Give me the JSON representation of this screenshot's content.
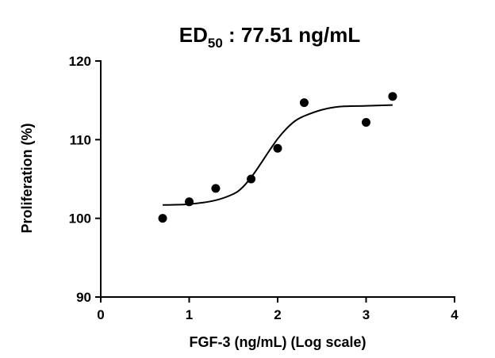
{
  "chart_data": {
    "type": "scatter",
    "title": {
      "main": "ED",
      "subscript": "50",
      "suffix": " : 77.51 ng/mL"
    },
    "xlabel": "FGF-3 (ng/mL) (Log scale)",
    "ylabel": "Proliferation (%)",
    "xlim": [
      0,
      4
    ],
    "ylim": [
      90,
      120
    ],
    "xticks": [
      "0",
      "1",
      "2",
      "3",
      "4"
    ],
    "yticks": [
      "90",
      "100",
      "110",
      "120"
    ],
    "grid": false,
    "series": [
      {
        "kind": "points",
        "x": [
          0.7,
          1.0,
          1.3,
          1.7,
          2.0,
          2.3,
          3.0,
          3.3
        ],
        "y": [
          100.0,
          102.1,
          103.8,
          105.0,
          108.9,
          114.7,
          112.2,
          115.5
        ]
      },
      {
        "kind": "fitted-curve",
        "x": [
          0.7,
          1.0,
          1.3,
          1.5,
          1.6,
          1.7,
          1.8,
          1.9,
          2.0,
          2.1,
          2.2,
          2.3,
          2.5,
          2.7,
          3.0,
          3.3
        ],
        "y": [
          101.7,
          101.8,
          102.3,
          103.1,
          103.9,
          105.2,
          106.8,
          108.5,
          110.1,
          111.4,
          112.4,
          113.0,
          113.8,
          114.2,
          114.3,
          114.4
        ]
      }
    ],
    "colors": {
      "ink": "#000000"
    }
  }
}
